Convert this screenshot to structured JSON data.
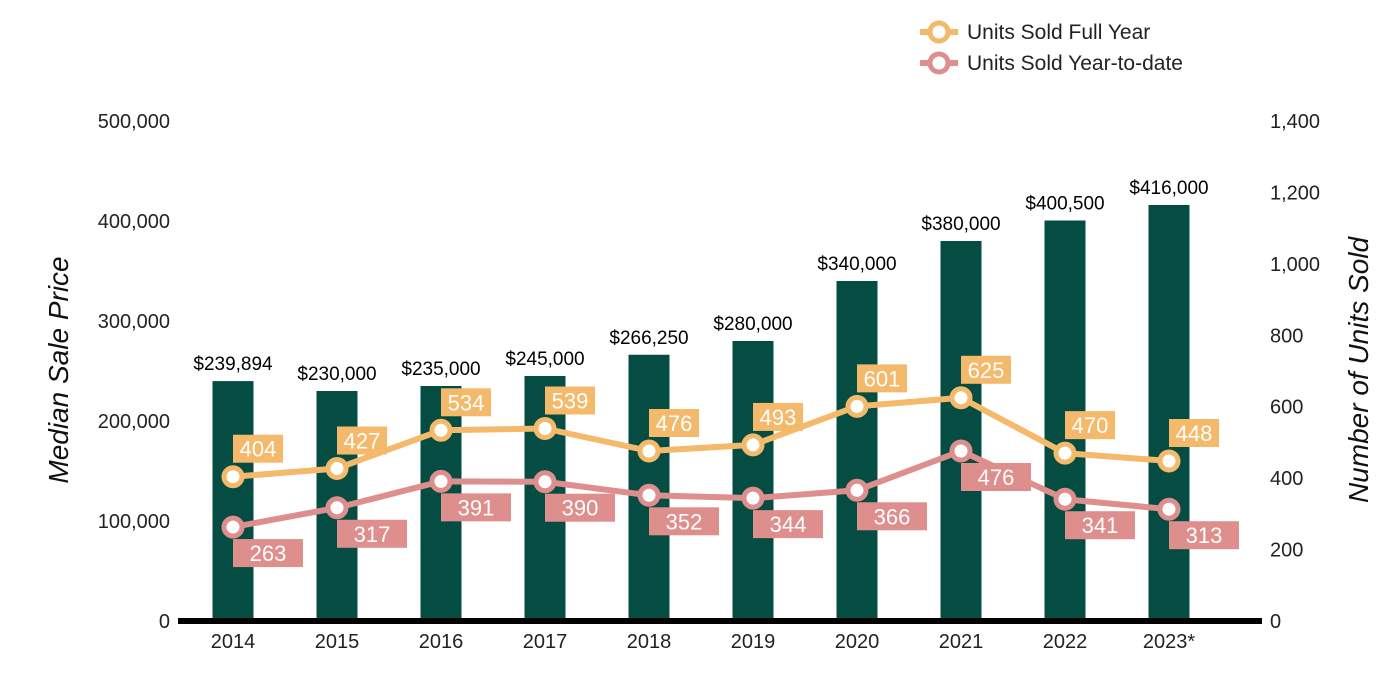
{
  "chart_data": {
    "type": "bar",
    "categories": [
      "2014",
      "2015",
      "2016",
      "2017",
      "2018",
      "2019",
      "2020",
      "2021",
      "2022",
      "2023*"
    ],
    "y_left": {
      "label": "Median Sale Price",
      "range": [
        0,
        500000
      ],
      "ticks": [
        "0",
        "100,000",
        "200,000",
        "300,000",
        "400,000",
        "500,000"
      ]
    },
    "y_right": {
      "label": "Number of Units Sold",
      "range": [
        0,
        1400
      ],
      "ticks": [
        "0",
        "200",
        "400",
        "600",
        "800",
        "1,000",
        "1,200",
        "1,400"
      ]
    },
    "bars": {
      "values": [
        239894,
        230000,
        235000,
        245000,
        266250,
        280000,
        340000,
        380000,
        400500,
        416000
      ],
      "labels": [
        "$239,894",
        "$230,000",
        "$235,000",
        "$245,000",
        "$266,250",
        "$280,000",
        "$340,000",
        "$380,000",
        "$400,500",
        "$416,000"
      ],
      "color": "#054d42"
    },
    "series": [
      {
        "name": "Units Sold Full Year",
        "type": "line",
        "axis": "right",
        "color": "#f4b96b",
        "values": [
          404,
          427,
          534,
          539,
          476,
          493,
          601,
          625,
          470,
          448
        ]
      },
      {
        "name": "Units Sold Year-to-date",
        "type": "line",
        "axis": "right",
        "color": "#de8e8d",
        "values": [
          263,
          317,
          391,
          390,
          352,
          344,
          366,
          476,
          341,
          313
        ]
      }
    ],
    "legend": "top-right",
    "grid": false
  }
}
